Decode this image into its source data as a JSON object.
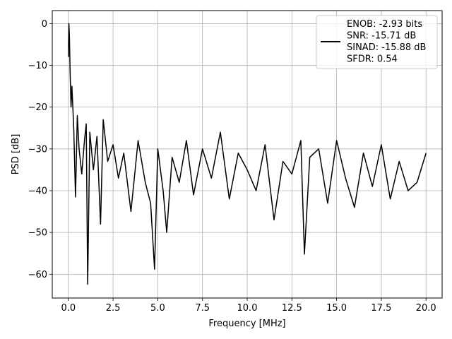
{
  "chart_data": {
    "type": "line",
    "title": "",
    "xlabel": "Frequency [MHz]",
    "ylabel": "PSD [dB]",
    "xlim": [
      -0.9,
      20.9
    ],
    "ylim": [
      -65.7,
      3.1
    ],
    "xticks": [
      0.0,
      2.5,
      5.0,
      7.5,
      10.0,
      12.5,
      15.0,
      17.5,
      20.0
    ],
    "xtick_labels": [
      "0.0",
      "2.5",
      "5.0",
      "7.5",
      "10.0",
      "12.5",
      "15.0",
      "17.5",
      "20.0"
    ],
    "yticks": [
      0,
      -10,
      -20,
      -30,
      -40,
      -50,
      -60
    ],
    "ytick_labels": [
      "0",
      "−10",
      "−20",
      "−30",
      "−40",
      "−50",
      "−60"
    ],
    "grid": true,
    "legend_position": "top-right",
    "legend_entries": [
      "ENOB: -2.93 bits",
      "SNR: -15.71 dB",
      "SINAD: -15.88 dB",
      "SFDR: 0.54"
    ],
    "series": [
      {
        "color": "#000000",
        "x": [
          0.0,
          0.03,
          0.06,
          0.1,
          0.15,
          0.2,
          0.3,
          0.4,
          0.5,
          0.6,
          0.75,
          0.9,
          1.0,
          1.08,
          1.2,
          1.4,
          1.6,
          1.8,
          1.95,
          2.2,
          2.5,
          2.8,
          3.1,
          3.5,
          3.9,
          4.3,
          4.6,
          4.82,
          5.0,
          5.3,
          5.5,
          5.8,
          6.2,
          6.6,
          7.0,
          7.5,
          8.0,
          8.5,
          9.0,
          9.5,
          10.0,
          10.5,
          11.0,
          11.5,
          12.0,
          12.5,
          13.0,
          13.2,
          13.5,
          14.0,
          14.5,
          15.0,
          15.5,
          16.0,
          16.5,
          17.0,
          17.5,
          18.0,
          18.5,
          19.0,
          19.5,
          20.0
        ],
        "y": [
          -8,
          0,
          -3,
          -12,
          -20,
          -15,
          -25,
          -41.5,
          -22,
          -30,
          -36,
          -28,
          -24,
          -62.4,
          -26,
          -35,
          -27,
          -48,
          -23,
          -33,
          -29,
          -37,
          -31,
          -45,
          -28,
          -38,
          -43,
          -58.8,
          -30,
          -40,
          -50,
          -32,
          -38,
          -28,
          -41,
          -30,
          -37,
          -26,
          -42,
          -31,
          -35,
          -40,
          -29,
          -47,
          -33,
          -36,
          -28,
          -55.2,
          -32,
          -30,
          -43,
          -28,
          -37,
          -44,
          -31,
          -39,
          -29,
          -42,
          -33,
          -40,
          -38,
          -31
        ]
      }
    ]
  }
}
